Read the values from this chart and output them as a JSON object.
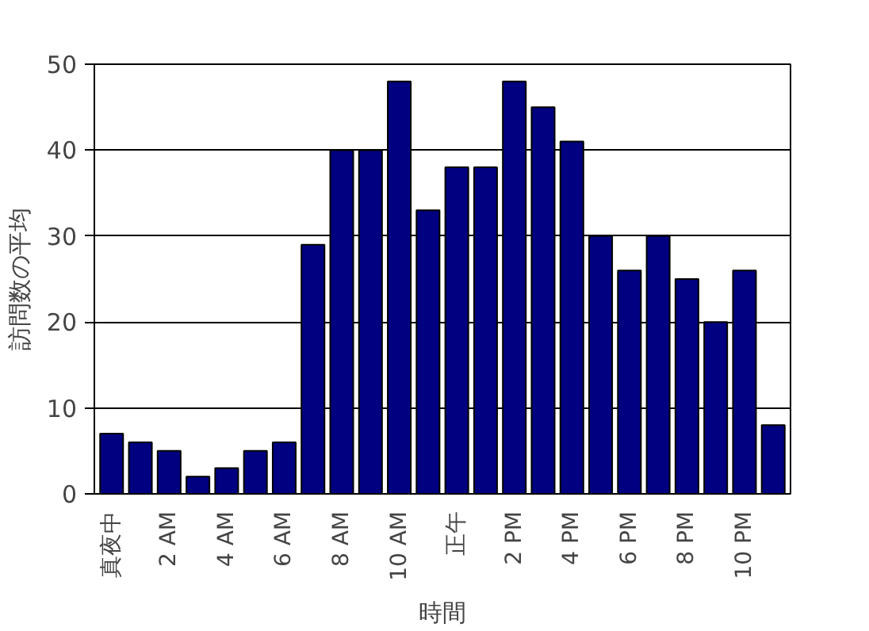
{
  "chart_data": {
    "type": "bar",
    "xlabel": "時間",
    "ylabel": "訪問数の平均",
    "categories": [
      "真夜中",
      null,
      "2 AM",
      null,
      "4 AM",
      null,
      "6 AM",
      null,
      "8 AM",
      null,
      "10 AM",
      null,
      "正午",
      null,
      "2 PM",
      null,
      "4 PM",
      null,
      "6 PM",
      null,
      "8 PM",
      null,
      "10 PM",
      null
    ],
    "values": [
      7,
      6,
      5,
      2,
      3,
      5,
      6,
      29,
      40,
      40,
      48,
      33,
      38,
      38,
      48,
      45,
      41,
      30,
      26,
      30,
      25,
      20,
      26,
      8
    ],
    "color": "#000080",
    "ylim": [
      0,
      50
    ],
    "yticks": [
      0,
      10,
      20,
      30,
      40,
      50
    ],
    "grid": "y"
  }
}
